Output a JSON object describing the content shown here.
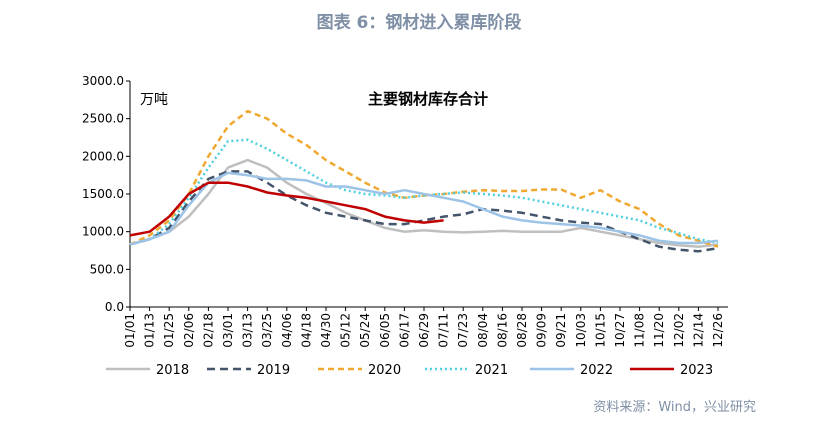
{
  "chart_data": {
    "type": "line",
    "title": "图表 6：钢材进入累库阶段",
    "unit_label": "万吨",
    "subtitle": "主要钢材库存合计",
    "source": "资料来源：Wind，兴业研究",
    "categories": [
      "01/01",
      "01/13",
      "01/25",
      "02/06",
      "02/18",
      "03/01",
      "03/13",
      "03/25",
      "04/06",
      "04/18",
      "04/30",
      "05/12",
      "05/24",
      "06/05",
      "06/17",
      "06/29",
      "07/11",
      "07/23",
      "08/04",
      "08/16",
      "08/28",
      "09/09",
      "09/21",
      "10/03",
      "10/15",
      "10/27",
      "11/08",
      "11/20",
      "12/02",
      "12/14",
      "12/26"
    ],
    "series": [
      {
        "name": "2018",
        "color": "#bfbfbf",
        "dash": "none",
        "values": [
          830,
          900,
          1000,
          1200,
          1500,
          1850,
          1950,
          1850,
          1650,
          1500,
          1380,
          1250,
          1150,
          1050,
          1000,
          1020,
          1000,
          990,
          1000,
          1010,
          1000,
          1000,
          1000,
          1050,
          1000,
          950,
          900,
          850,
          820,
          800,
          830
        ]
      },
      {
        "name": "2019",
        "color": "#44546a",
        "dash": "8 5",
        "values": [
          830,
          900,
          1050,
          1400,
          1700,
          1800,
          1800,
          1650,
          1480,
          1350,
          1250,
          1200,
          1150,
          1100,
          1100,
          1150,
          1200,
          1230,
          1300,
          1280,
          1250,
          1200,
          1150,
          1120,
          1100,
          1000,
          900,
          800,
          760,
          740,
          780
        ]
      },
      {
        "name": "2020",
        "color": "#f0a830",
        "dash": "6 4",
        "values": [
          830,
          950,
          1150,
          1500,
          2000,
          2400,
          2600,
          2500,
          2300,
          2150,
          1950,
          1800,
          1650,
          1520,
          1450,
          1480,
          1500,
          1530,
          1550,
          1540,
          1540,
          1560,
          1560,
          1450,
          1550,
          1400,
          1300,
          1100,
          950,
          880,
          800
        ]
      },
      {
        "name": "2021",
        "color": "#4fcfdf",
        "dash": "2 3",
        "values": [
          830,
          900,
          1100,
          1450,
          1850,
          2200,
          2220,
          2100,
          1950,
          1800,
          1650,
          1550,
          1500,
          1480,
          1450,
          1480,
          1500,
          1520,
          1500,
          1480,
          1450,
          1400,
          1350,
          1300,
          1250,
          1200,
          1150,
          1050,
          980,
          900,
          850
        ]
      },
      {
        "name": "2022",
        "color": "#9dc3e6",
        "dash": "none",
        "values": [
          830,
          900,
          1000,
          1350,
          1650,
          1780,
          1750,
          1700,
          1700,
          1680,
          1600,
          1600,
          1550,
          1500,
          1550,
          1500,
          1450,
          1400,
          1300,
          1200,
          1150,
          1120,
          1100,
          1080,
          1050,
          1000,
          950,
          880,
          850,
          850,
          880
        ]
      },
      {
        "name": "2023",
        "color": "#c00000",
        "dash": "none",
        "values": [
          950,
          1000,
          1200,
          1500,
          1650,
          1650,
          1600,
          1520,
          1480,
          1450,
          1400,
          1350,
          1300,
          1200,
          1150,
          1120,
          1150,
          null,
          null,
          null,
          null,
          null,
          null,
          null,
          null,
          null,
          null,
          null,
          null,
          null,
          null
        ]
      }
    ],
    "ylim": [
      0,
      3000
    ],
    "yticks": [
      {
        "value": 0,
        "label": "0.0"
      },
      {
        "value": 500,
        "label": "500.0"
      },
      {
        "value": 1000,
        "label": "1000.0"
      },
      {
        "value": 1500,
        "label": "1500.0"
      },
      {
        "value": 2000,
        "label": "2000.0"
      },
      {
        "value": 2500,
        "label": "2500.0"
      },
      {
        "value": 3000,
        "label": "3000.0"
      }
    ],
    "grid": false,
    "legend": "bottom"
  }
}
